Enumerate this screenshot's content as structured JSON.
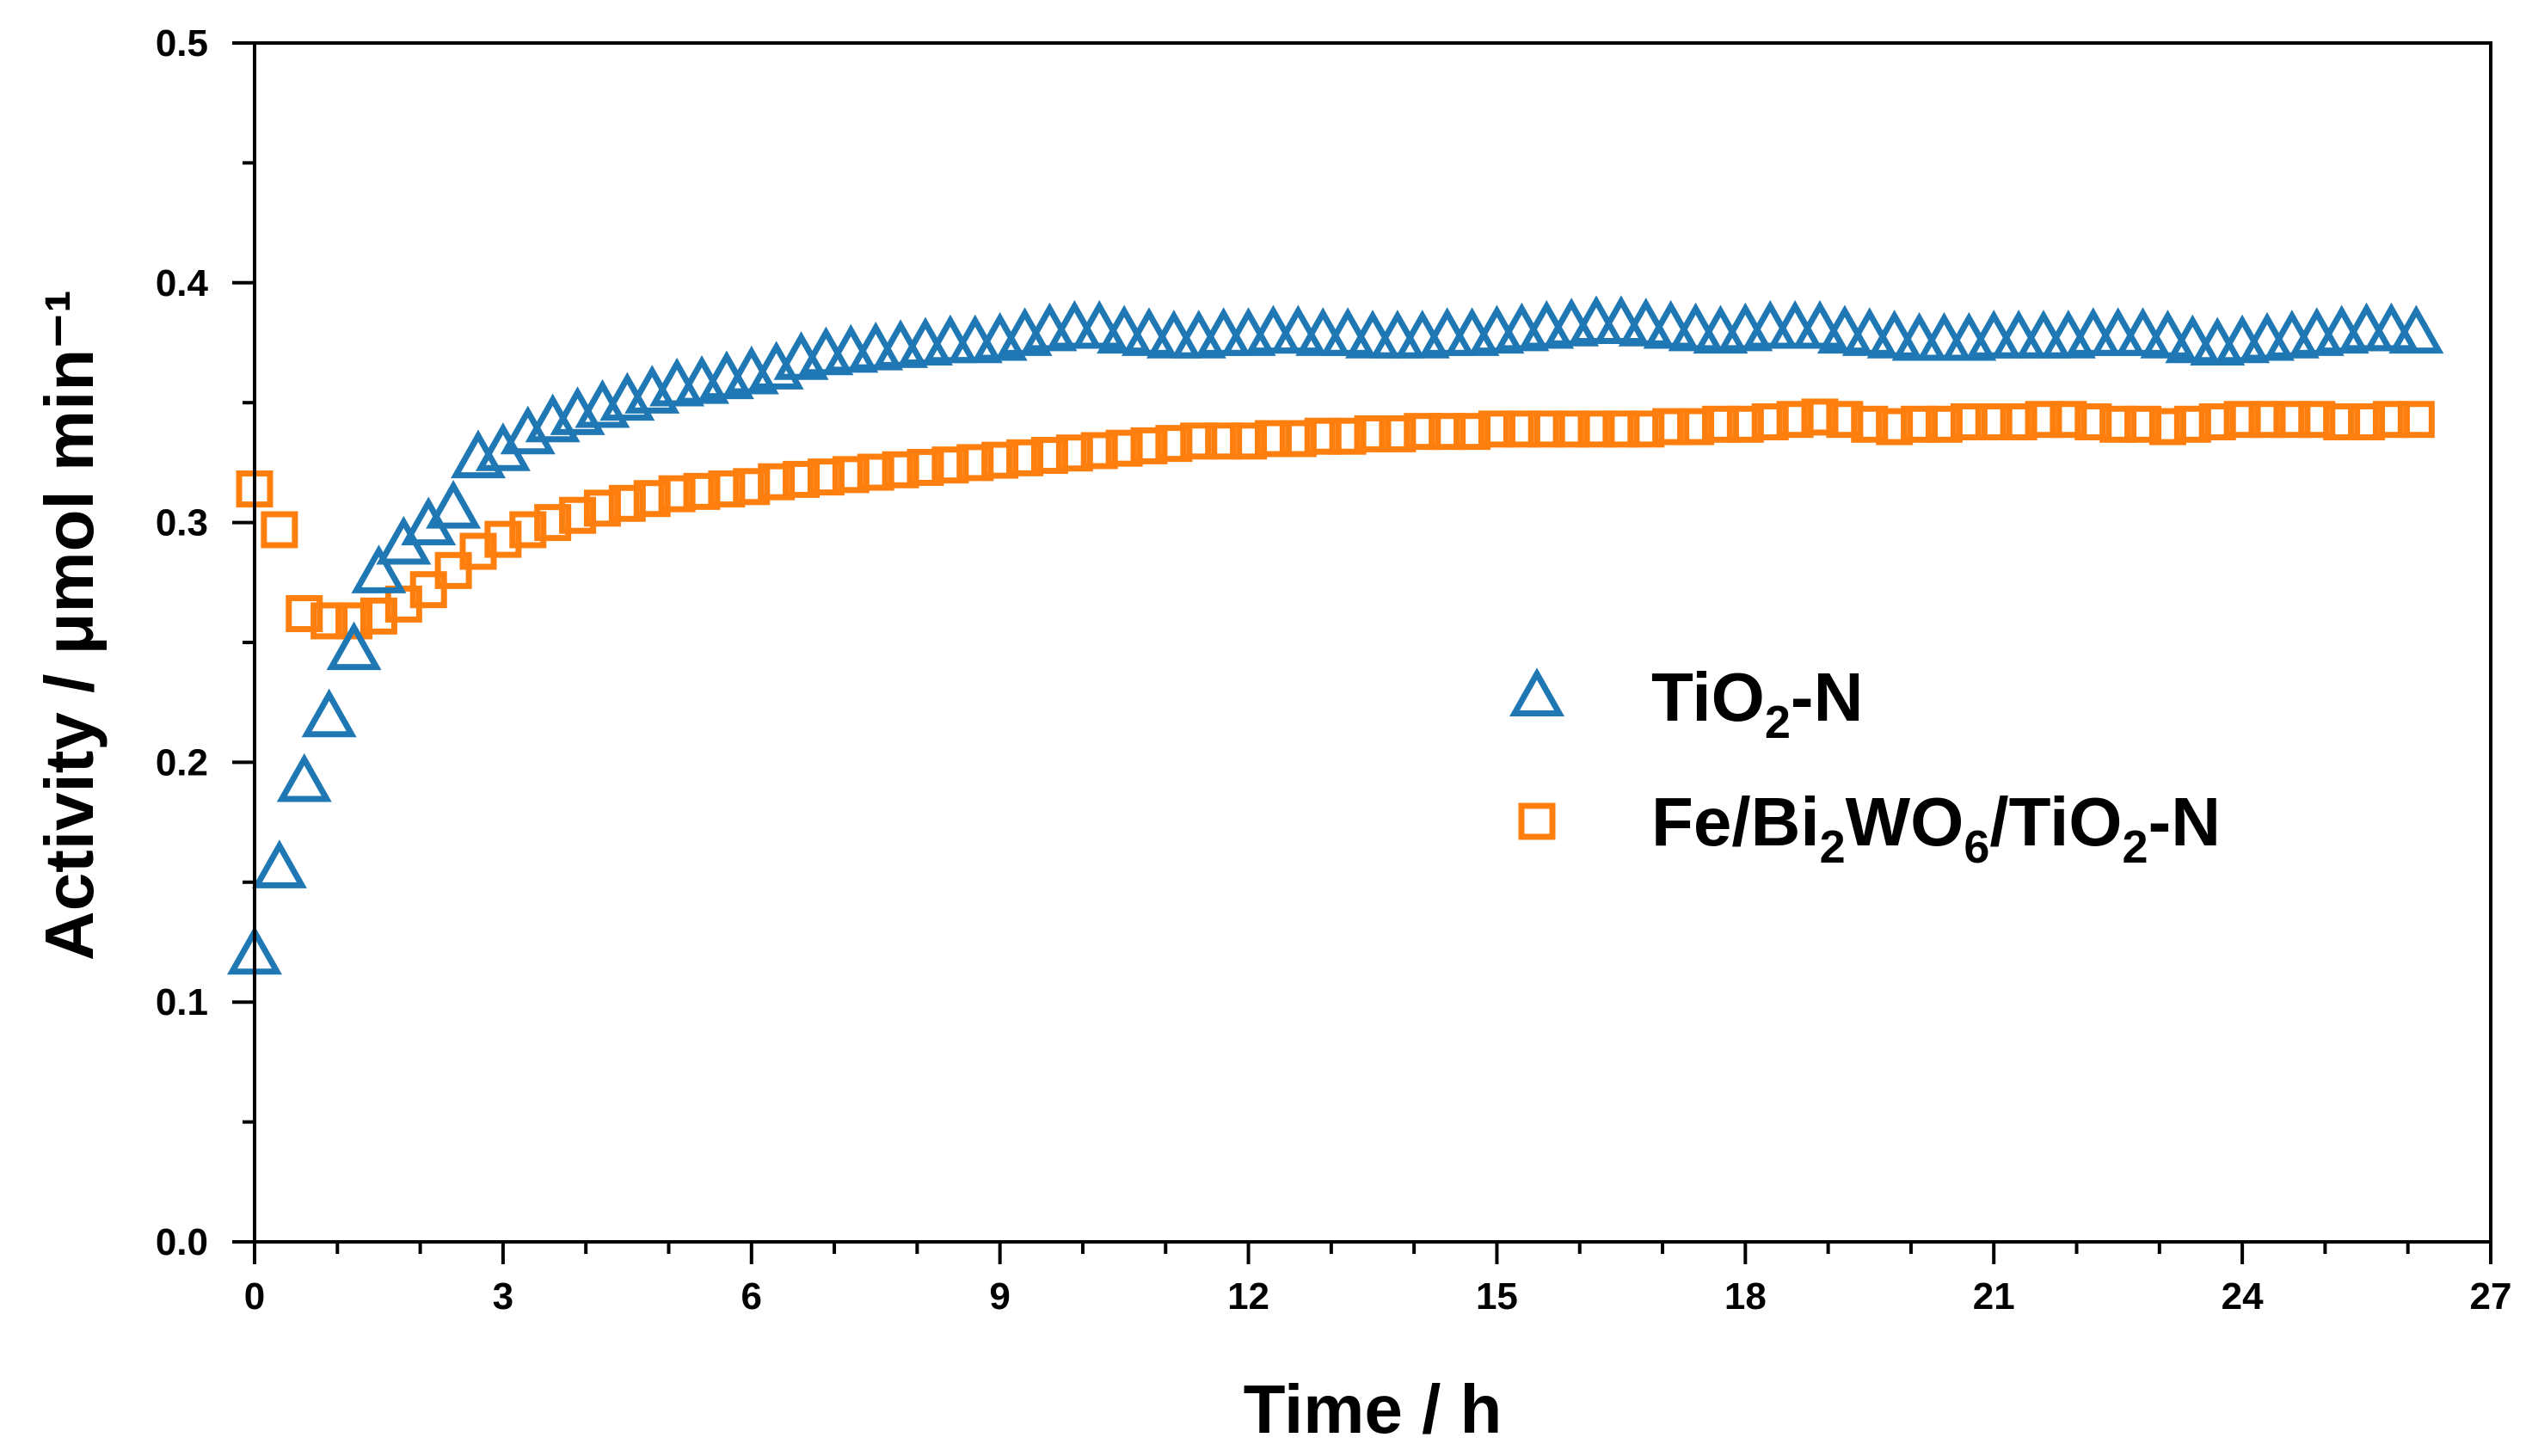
{
  "chart_data": {
    "type": "scatter",
    "xlabel": "Time / h",
    "ylabel": "Activity / μmol min⁻¹",
    "xlim": [
      0,
      27
    ],
    "ylim": [
      0,
      0.5
    ],
    "x_ticks": [
      "0",
      "3",
      "6",
      "9",
      "12",
      "15",
      "18",
      "21",
      "24",
      "27"
    ],
    "y_ticks": [
      "0.0",
      "0.1",
      "0.2",
      "0.3",
      "0.4",
      "0.5"
    ],
    "legend_position": "center-right",
    "series": [
      {
        "name": "TiO2-N",
        "name_parts": [
          {
            "text": "TiO",
            "sub": false
          },
          {
            "text": "2",
            "sub": true
          },
          {
            "text": "-N",
            "sub": false
          }
        ],
        "marker": "triangle-open",
        "color": "#1f77b4",
        "x": [
          0.0,
          0.3,
          0.6,
          0.9,
          1.2,
          1.5,
          1.8,
          2.1,
          2.4,
          2.7,
          3.0,
          3.3,
          3.6,
          3.9,
          4.2,
          4.5,
          4.8,
          5.1,
          5.4,
          5.7,
          6.0,
          6.3,
          6.6,
          6.9,
          7.2,
          7.5,
          7.8,
          8.1,
          8.4,
          8.7,
          9.0,
          9.3,
          9.6,
          9.9,
          10.2,
          10.5,
          10.8,
          11.1,
          11.4,
          11.7,
          12.0,
          12.3,
          12.6,
          12.9,
          13.2,
          13.5,
          13.8,
          14.1,
          14.4,
          14.7,
          15.0,
          15.3,
          15.6,
          15.9,
          16.2,
          16.5,
          16.8,
          17.1,
          17.4,
          17.7,
          18.0,
          18.3,
          18.6,
          18.9,
          19.2,
          19.5,
          19.8,
          20.1,
          20.4,
          20.7,
          21.0,
          21.3,
          21.6,
          21.9,
          22.2,
          22.5,
          22.8,
          23.1,
          23.4,
          23.7,
          24.0,
          24.3,
          24.6,
          24.9,
          25.2,
          25.5,
          25.8,
          26.1
        ],
        "y": [
          0.119,
          0.155,
          0.191,
          0.218,
          0.246,
          0.278,
          0.29,
          0.298,
          0.305,
          0.326,
          0.329,
          0.336,
          0.341,
          0.344,
          0.347,
          0.35,
          0.353,
          0.356,
          0.357,
          0.359,
          0.361,
          0.363,
          0.367,
          0.369,
          0.37,
          0.371,
          0.372,
          0.373,
          0.374,
          0.374,
          0.375,
          0.377,
          0.379,
          0.38,
          0.38,
          0.378,
          0.377,
          0.376,
          0.376,
          0.377,
          0.377,
          0.378,
          0.378,
          0.377,
          0.377,
          0.376,
          0.376,
          0.376,
          0.377,
          0.377,
          0.378,
          0.379,
          0.38,
          0.381,
          0.382,
          0.382,
          0.381,
          0.38,
          0.379,
          0.378,
          0.379,
          0.38,
          0.38,
          0.38,
          0.378,
          0.377,
          0.376,
          0.375,
          0.375,
          0.375,
          0.376,
          0.376,
          0.376,
          0.376,
          0.377,
          0.377,
          0.377,
          0.376,
          0.374,
          0.373,
          0.374,
          0.375,
          0.376,
          0.377,
          0.378,
          0.379,
          0.379,
          0.378
        ]
      },
      {
        "name": "Fe/Bi2WO6/TiO2-N",
        "name_parts": [
          {
            "text": "Fe/Bi",
            "sub": false
          },
          {
            "text": "2",
            "sub": true
          },
          {
            "text": "WO",
            "sub": false
          },
          {
            "text": "6",
            "sub": true
          },
          {
            "text": "/TiO",
            "sub": false
          },
          {
            "text": "2",
            "sub": true
          },
          {
            "text": "-N",
            "sub": false
          }
        ],
        "marker": "square-open",
        "color": "#ff7f0e",
        "x": [
          0.0,
          0.3,
          0.6,
          0.9,
          1.2,
          1.5,
          1.8,
          2.1,
          2.4,
          2.7,
          3.0,
          3.3,
          3.6,
          3.9,
          4.2,
          4.5,
          4.8,
          5.1,
          5.4,
          5.7,
          6.0,
          6.3,
          6.6,
          6.9,
          7.2,
          7.5,
          7.8,
          8.1,
          8.4,
          8.7,
          9.0,
          9.3,
          9.6,
          9.9,
          10.2,
          10.5,
          10.8,
          11.1,
          11.4,
          11.7,
          12.0,
          12.3,
          12.6,
          12.9,
          13.2,
          13.5,
          13.8,
          14.1,
          14.4,
          14.7,
          15.0,
          15.3,
          15.6,
          15.9,
          16.2,
          16.5,
          16.8,
          17.1,
          17.4,
          17.7,
          18.0,
          18.3,
          18.6,
          18.9,
          19.2,
          19.5,
          19.8,
          20.1,
          20.4,
          20.7,
          21.0,
          21.3,
          21.6,
          21.9,
          22.2,
          22.5,
          22.8,
          23.1,
          23.4,
          23.7,
          24.0,
          24.3,
          24.6,
          24.9,
          25.2,
          25.5,
          25.8,
          26.1
        ],
        "y": [
          0.314,
          0.297,
          0.262,
          0.259,
          0.259,
          0.261,
          0.266,
          0.272,
          0.28,
          0.288,
          0.293,
          0.297,
          0.3,
          0.303,
          0.306,
          0.308,
          0.31,
          0.312,
          0.313,
          0.314,
          0.315,
          0.317,
          0.318,
          0.319,
          0.32,
          0.321,
          0.322,
          0.323,
          0.324,
          0.325,
          0.326,
          0.327,
          0.328,
          0.329,
          0.33,
          0.331,
          0.332,
          0.333,
          0.334,
          0.334,
          0.334,
          0.335,
          0.335,
          0.336,
          0.336,
          0.337,
          0.337,
          0.338,
          0.338,
          0.338,
          0.339,
          0.339,
          0.339,
          0.339,
          0.339,
          0.339,
          0.339,
          0.34,
          0.34,
          0.341,
          0.341,
          0.342,
          0.343,
          0.344,
          0.343,
          0.341,
          0.34,
          0.341,
          0.341,
          0.342,
          0.342,
          0.342,
          0.343,
          0.343,
          0.342,
          0.341,
          0.341,
          0.34,
          0.341,
          0.342,
          0.343,
          0.343,
          0.343,
          0.343,
          0.342,
          0.342,
          0.343,
          0.343
        ]
      }
    ]
  }
}
